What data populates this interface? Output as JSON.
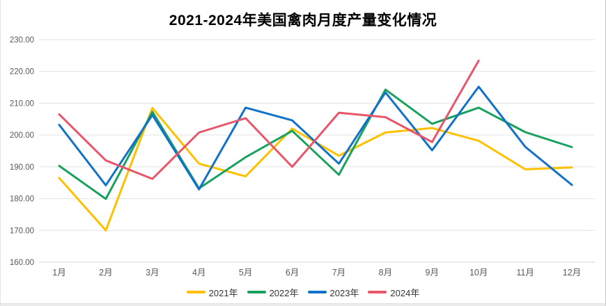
{
  "title": "2021-2024年美国禽肉月度产量变化情况",
  "colors": {
    "series_2021": "#FFC000",
    "series_2022": "#19A15E",
    "series_2023": "#1272C8",
    "series_2024": "#E8566B",
    "gridline": "#E2E2E2",
    "axis_line": "#D5D5D5",
    "tick_label": "#595959",
    "legend_text": "#333333",
    "title_text": "#000000"
  },
  "chart_data": {
    "type": "line",
    "title": "2021-2024年美国禽肉月度产量变化情况",
    "categories": [
      "1月",
      "2月",
      "3月",
      "4月",
      "5月",
      "6月",
      "7月",
      "8月",
      "9月",
      "10月",
      "11月",
      "12月"
    ],
    "series": [
      {
        "name": "2021年",
        "color": "#FFC000",
        "values": [
          186.5,
          170.0,
          208.5,
          191.0,
          187.0,
          202.0,
          193.5,
          200.8,
          202.2,
          198.2,
          189.2,
          189.8
        ]
      },
      {
        "name": "2022年",
        "color": "#19A15E",
        "values": [
          190.3,
          179.9,
          207.3,
          183.2,
          193.0,
          201.3,
          187.5,
          214.3,
          203.5,
          208.6,
          200.9,
          196.2
        ]
      },
      {
        "name": "2023年",
        "color": "#1272C8",
        "values": [
          203.2,
          184.2,
          206.3,
          182.9,
          208.6,
          204.6,
          191.0,
          213.4,
          195.2,
          215.2,
          196.3,
          184.3
        ]
      },
      {
        "name": "2024年",
        "color": "#E8566B",
        "values": [
          206.5,
          192.0,
          186.2,
          200.8,
          205.3,
          190.0,
          207.0,
          205.6,
          197.8,
          223.4,
          null,
          null
        ]
      }
    ],
    "ylim": [
      160,
      230
    ],
    "ytick_step": 10,
    "yticks": [
      "230.00",
      "220.00",
      "210.00",
      "200.00",
      "190.00",
      "180.00",
      "170.00",
      "160.00"
    ],
    "grid": true,
    "legend_position": "bottom",
    "legend_entries": [
      "2021年",
      "2022年",
      "2023年",
      "2024年"
    ]
  }
}
